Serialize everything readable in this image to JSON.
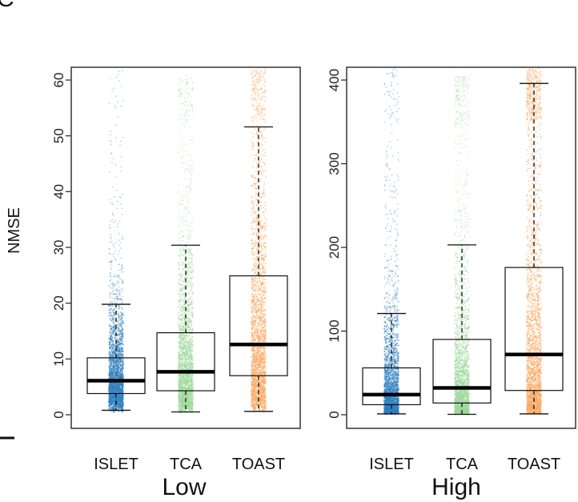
{
  "chart_data": {
    "type": "box",
    "panel_label": "C",
    "ylabel": "NMSE",
    "categories": [
      "ISLET",
      "TCA",
      "TOAST"
    ],
    "colors": {
      "ISLET": "#2f7fbf",
      "TCA": "#9fd99a",
      "TOAST": "#fba55c"
    },
    "panels": [
      {
        "group": "Low",
        "ylim": [
          0,
          62
        ],
        "yticks": [
          0,
          10,
          20,
          30,
          40,
          50,
          60
        ],
        "boxes": [
          {
            "name": "ISLET",
            "whisker_low": 0.8,
            "q1": 3.8,
            "median": 6.1,
            "q3": 10.2,
            "whisker_high": 19.8,
            "point_max": 62
          },
          {
            "name": "TCA",
            "whisker_low": 0.5,
            "q1": 4.3,
            "median": 7.7,
            "q3": 14.7,
            "whisker_high": 30.4,
            "point_max": 61
          },
          {
            "name": "TOAST",
            "whisker_low": 0.6,
            "q1": 7.0,
            "median": 12.6,
            "q3": 24.9,
            "whisker_high": 51.6,
            "point_max": 62
          }
        ]
      },
      {
        "group": "High",
        "ylim": [
          0,
          415
        ],
        "yticks": [
          0,
          100,
          200,
          300,
          400
        ],
        "boxes": [
          {
            "name": "ISLET",
            "whisker_low": 1,
            "q1": 12,
            "median": 24,
            "q3": 56,
            "whisker_high": 121,
            "point_max": 415
          },
          {
            "name": "TCA",
            "whisker_low": 0.5,
            "q1": 14,
            "median": 32,
            "q3": 90,
            "whisker_high": 203,
            "point_max": 405
          },
          {
            "name": "TOAST",
            "whisker_low": 1,
            "q1": 29,
            "median": 72,
            "q3": 176,
            "whisker_high": 396,
            "point_max": 415
          }
        ]
      }
    ]
  }
}
